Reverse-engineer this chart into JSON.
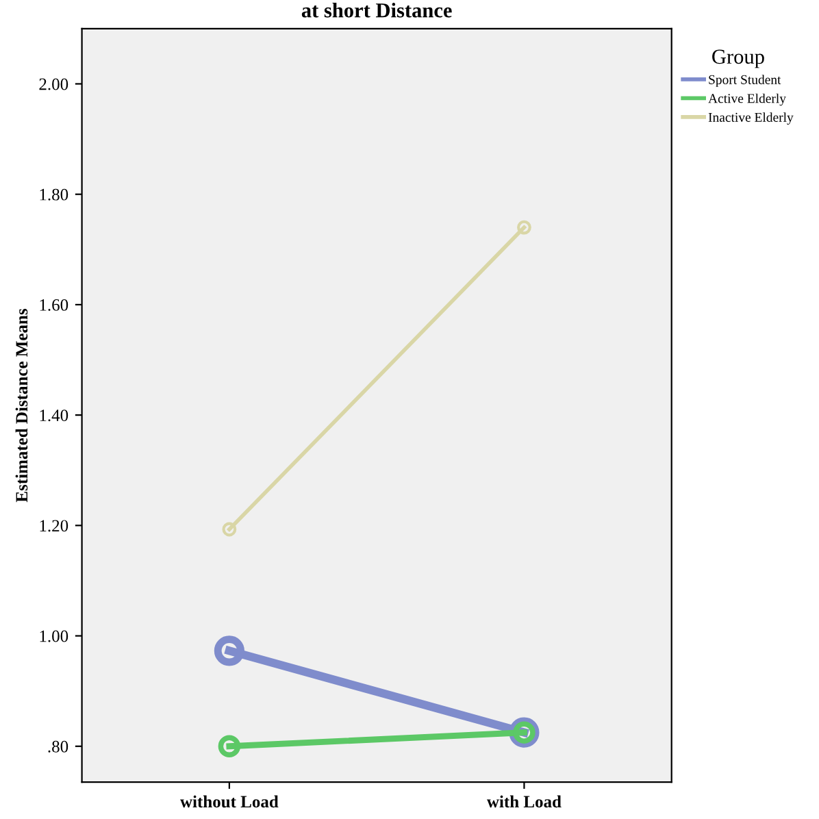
{
  "chart_data": {
    "type": "line",
    "title": "at short Distance",
    "ylabel": "Estimated Distance Means",
    "legend_title": "Group",
    "categories": [
      "without Load",
      "with Load"
    ],
    "series": [
      {
        "name": "Sport Student",
        "color": "#7f8ccc",
        "values": [
          0.973,
          0.825
        ]
      },
      {
        "name": "Active Elderly",
        "color": "#5cc866",
        "values": [
          0.8,
          0.825
        ]
      },
      {
        "name": "Inactive Elderly",
        "color": "#d9d6a6",
        "values": [
          1.193,
          1.74
        ]
      }
    ],
    "ylim": [
      0.735,
      2.1
    ],
    "yticks": [
      {
        "value": 0.8,
        "label": ".80"
      },
      {
        "value": 1.0,
        "label": "1.00"
      },
      {
        "value": 1.2,
        "label": "1.20"
      },
      {
        "value": 1.4,
        "label": "1.40"
      },
      {
        "value": 1.6,
        "label": "1.60"
      },
      {
        "value": 1.8,
        "label": "1.80"
      },
      {
        "value": 2.0,
        "label": "2.00"
      }
    ],
    "grid": false,
    "legend": "right",
    "marker": "circle",
    "line_style": "solid"
  }
}
